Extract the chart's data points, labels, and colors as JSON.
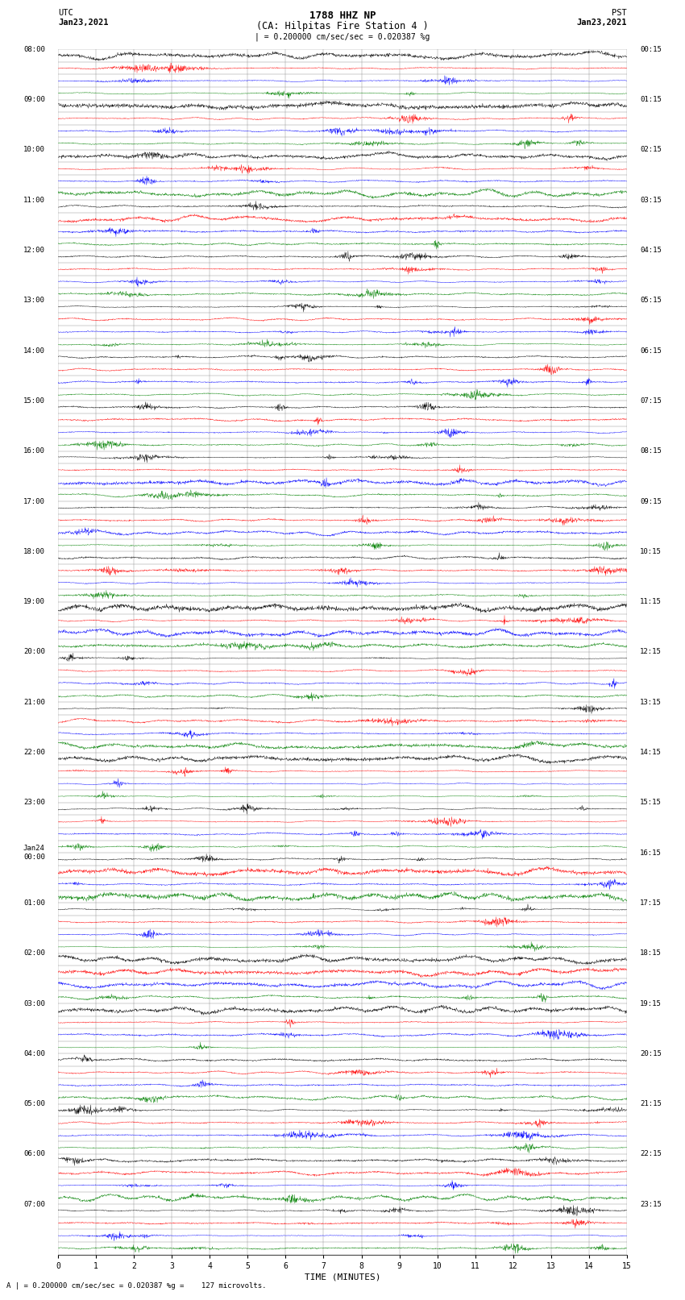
{
  "title_line1": "1788 HHZ NP",
  "title_line2": "(CA: Hilpitas Fire Station 4 )",
  "left_label_top": "UTC",
  "left_label_date": "Jan23,2021",
  "right_label_top": "PST",
  "right_label_date": "Jan23,2021",
  "scale_text": "| = 0.200000 cm/sec/sec = 0.020387 %g",
  "bottom_note": "A | = 0.200000 cm/sec/sec = 0.020387 %g =    127 microvolts.",
  "xlabel": "TIME (MINUTES)",
  "x_ticks": [
    0,
    1,
    2,
    3,
    4,
    5,
    6,
    7,
    8,
    9,
    10,
    11,
    12,
    13,
    14,
    15
  ],
  "num_rows": 96,
  "colors": [
    "black",
    "red",
    "blue",
    "green"
  ],
  "left_labels": {
    "0": "08:00",
    "4": "09:00",
    "8": "10:00",
    "12": "11:00",
    "16": "12:00",
    "20": "13:00",
    "24": "14:00",
    "28": "15:00",
    "32": "16:00",
    "36": "17:00",
    "40": "18:00",
    "44": "19:00",
    "48": "20:00",
    "52": "21:00",
    "56": "22:00",
    "60": "23:00",
    "64": "Jan24\n00:00",
    "68": "01:00",
    "72": "02:00",
    "76": "03:00",
    "80": "04:00",
    "84": "05:00",
    "88": "06:00",
    "92": "07:00"
  },
  "right_labels": {
    "0": "00:15",
    "4": "01:15",
    "8": "02:15",
    "12": "03:15",
    "16": "04:15",
    "20": "05:15",
    "24": "06:15",
    "28": "07:15",
    "32": "08:15",
    "36": "09:15",
    "40": "10:15",
    "44": "11:15",
    "48": "12:15",
    "52": "13:15",
    "56": "14:15",
    "60": "15:15",
    "64": "16:15",
    "68": "17:15",
    "72": "18:15",
    "76": "19:15",
    "80": "20:15",
    "84": "21:15",
    "88": "22:15",
    "92": "23:15"
  },
  "background_color": "white",
  "trace_linewidth": 0.3,
  "amplitude_scale": 0.42,
  "grid_color": "#888888",
  "grid_linewidth": 0.3
}
